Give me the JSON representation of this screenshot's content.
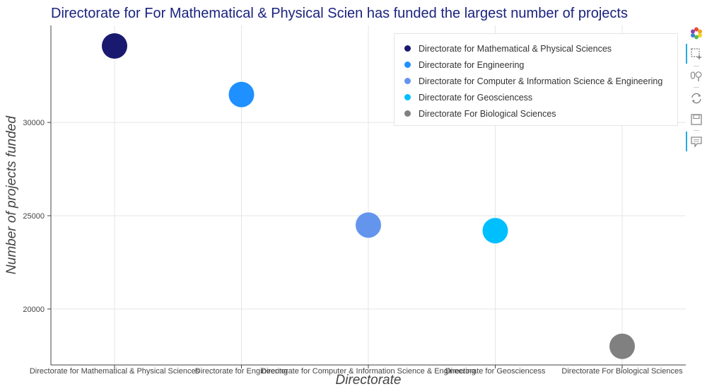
{
  "title": "Directorate for For Mathematical & Physical Scien has funded the largest number of projects",
  "chart_data": {
    "type": "scatter",
    "categories": [
      "Directorate for Mathematical & Physical Sciences",
      "Directorate for Engineering",
      "Directorate for Computer & Information Science & Engineering",
      "Directorate for Geosciencess",
      "Directorate For Biological Sciences"
    ],
    "values": [
      34100,
      31500,
      24500,
      24200,
      18000
    ],
    "colors": [
      "#191970",
      "#1e90ff",
      "#6495ed",
      "#00bfff",
      "#808080"
    ],
    "xlabel": "Directorate",
    "ylabel": "Number of projects funded",
    "ylim": [
      17000,
      35200
    ],
    "yticks": [
      20000,
      25000,
      30000
    ],
    "grid": true,
    "legend": "top-right"
  },
  "legend": {
    "items": [
      {
        "label": "Directorate for Mathematical & Physical Sciences",
        "color": "#191970"
      },
      {
        "label": "Directorate for Engineering",
        "color": "#1e90ff"
      },
      {
        "label": "Directorate for Computer & Information Science & Engineering",
        "color": "#6495ed"
      },
      {
        "label": "Directorate for Geosciencess",
        "color": "#00bfff"
      },
      {
        "label": "Directorate For Biological Sciences",
        "color": "#808080"
      }
    ]
  },
  "toolbar": {
    "tools": [
      "bokeh-logo-icon",
      "box-zoom-icon",
      "wheel-zoom-icon",
      "reset-icon",
      "save-icon",
      "hover-icon"
    ]
  }
}
